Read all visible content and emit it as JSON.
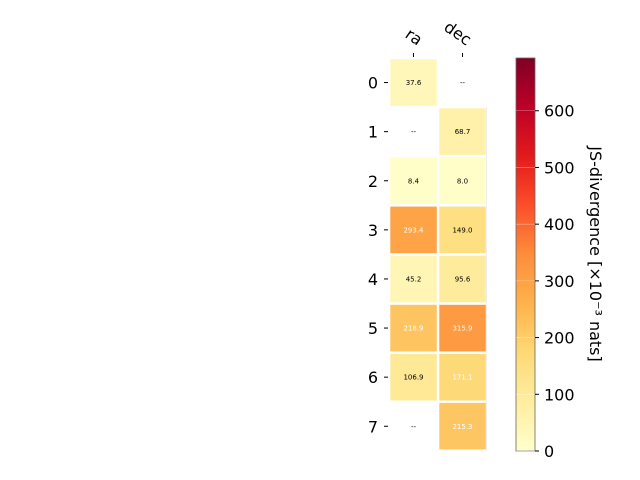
{
  "chart_data": {
    "type": "heatmap",
    "title": "",
    "columns": [
      "ra",
      "dec"
    ],
    "rows": [
      "0",
      "1",
      "2",
      "3",
      "4",
      "5",
      "6",
      "7"
    ],
    "values": [
      [
        37.6,
        null
      ],
      [
        null,
        68.7
      ],
      [
        8.4,
        8.0
      ],
      [
        293.4,
        149.0
      ],
      [
        45.2,
        95.6
      ],
      [
        218.9,
        315.9
      ],
      [
        106.9,
        171.1
      ],
      [
        null,
        215.3
      ]
    ],
    "cell_labels": [
      [
        "37.6",
        "--"
      ],
      [
        "--",
        "68.7"
      ],
      [
        "8.4",
        "8.0"
      ],
      [
        "293.4",
        "149.0"
      ],
      [
        "45.2",
        "95.6"
      ],
      [
        "218.9",
        "315.9"
      ],
      [
        "106.9",
        "171.1"
      ],
      [
        "--",
        "215.3"
      ]
    ],
    "colormap": "YlOrRd",
    "colorbar": {
      "label": "JS-divergence [×10⁻³ nats]",
      "range": [
        0,
        693
      ],
      "ticks": [
        "0",
        "100",
        "200",
        "300",
        "400",
        "500",
        "600"
      ],
      "tick_values": [
        0,
        100,
        200,
        300,
        400,
        500,
        600
      ]
    },
    "grid": false
  }
}
